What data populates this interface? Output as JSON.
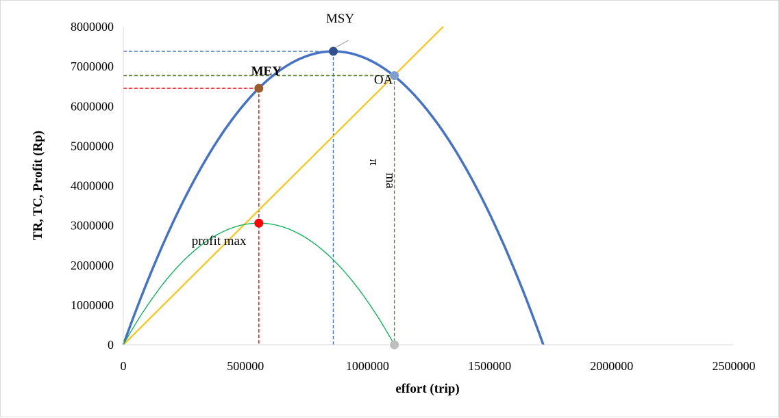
{
  "chart_data": {
    "type": "line",
    "xlabel": "effort (trip)",
    "ylabel": "TR, TC, Profit (Rp)",
    "xlim": [
      0,
      2500000
    ],
    "ylim": [
      0,
      8000000
    ],
    "x_ticks": [
      "0",
      "500000",
      "1000000",
      "1500000",
      "2000000",
      "2500000"
    ],
    "y_ticks": [
      "0",
      "1000000",
      "2000000",
      "3000000",
      "4000000",
      "5000000",
      "6000000",
      "7000000",
      "8000000"
    ],
    "grid": false,
    "series": [
      {
        "role": "total-revenue",
        "shape": "parabola",
        "zeros": [
          0,
          1720000
        ],
        "peak": [
          860000,
          7380000
        ],
        "color": "#4472C4"
      },
      {
        "role": "total-cost",
        "shape": "linear",
        "from": [
          0,
          0
        ],
        "to": [
          1310000,
          8000000
        ],
        "color": "#FFC000"
      },
      {
        "role": "profit",
        "shape": "parabola",
        "zeros": [
          0,
          1110000
        ],
        "peak": [
          555000,
          3060000
        ],
        "color": "#00B050"
      }
    ],
    "points": [
      {
        "label": "MSY",
        "x": 860000,
        "y": 7380000,
        "color": "#2F4F8F",
        "label_color": "#000000",
        "guide_color": "#4472C4"
      },
      {
        "label": "MEY",
        "x": 555000,
        "y": 6450000,
        "color": "#9C5B2A",
        "label_color": "#FF0000",
        "guide_color": "#FF0000"
      },
      {
        "label": "OA",
        "x": 1110000,
        "y": 6770000,
        "color": "#7F9FD0",
        "label_color": "#000000",
        "guide_color": "#548235"
      },
      {
        "label": "profit max",
        "x": 555000,
        "y": 3060000,
        "color": "#FF0000",
        "label_color": "#000000"
      },
      {
        "label": "",
        "x": 1110000,
        "y": 0,
        "color": "#BFBFBF"
      }
    ],
    "annotations": [
      {
        "text": "π",
        "color": "#C00000"
      },
      {
        "text": "ma",
        "color": "#C00000"
      }
    ]
  }
}
